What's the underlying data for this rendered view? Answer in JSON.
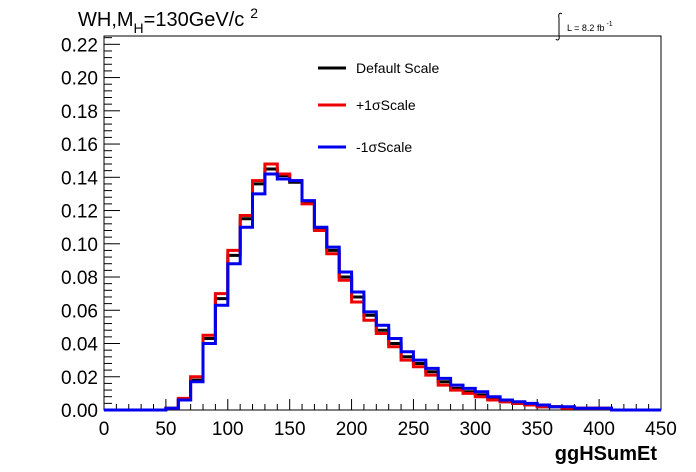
{
  "chart_data": {
    "type": "line",
    "title": "WH,M",
    "title_subscript": "H",
    "title_rest": "=130GeV/c",
    "title_superscript": "2",
    "luminosity_label": "L = 8.2 fb",
    "luminosity_superscript": "-1",
    "xlabel": "ggHSumEt",
    "ylabel": "",
    "xlim": [
      0,
      450
    ],
    "ylim": [
      0,
      0.225
    ],
    "x_ticks": [
      "0",
      "50",
      "100",
      "150",
      "200",
      "250",
      "300",
      "350",
      "400",
      "450"
    ],
    "y_ticks": [
      "0.00",
      "0.02",
      "0.04",
      "0.06",
      "0.08",
      "0.10",
      "0.12",
      "0.14",
      "0.16",
      "0.18",
      "0.20",
      "0.22"
    ],
    "bin_edges": [
      0,
      10,
      20,
      30,
      40,
      50,
      60,
      70,
      80,
      90,
      100,
      110,
      120,
      130,
      140,
      150,
      160,
      170,
      180,
      190,
      200,
      210,
      220,
      230,
      240,
      250,
      260,
      270,
      280,
      290,
      300,
      310,
      320,
      330,
      340,
      350,
      360,
      370,
      380,
      390,
      400,
      410,
      420,
      430,
      440,
      450
    ],
    "grid": false,
    "legend_position": "top-center",
    "series": [
      {
        "name": "Default Scale",
        "color": "#000000",
        "values": [
          0,
          0,
          0,
          0,
          0,
          0.001,
          0.006,
          0.018,
          0.043,
          0.067,
          0.093,
          0.115,
          0.136,
          0.145,
          0.141,
          0.137,
          0.125,
          0.109,
          0.096,
          0.08,
          0.068,
          0.057,
          0.048,
          0.04,
          0.032,
          0.028,
          0.023,
          0.017,
          0.013,
          0.011,
          0.009,
          0.007,
          0.005,
          0.004,
          0.003,
          0.002,
          0.002,
          0.001,
          0.001,
          0.001,
          0.001,
          0,
          0,
          0,
          0
        ]
      },
      {
        "name": "+1σScale",
        "color": "#ee0000",
        "values": [
          0,
          0,
          0,
          0,
          0,
          0.001,
          0.007,
          0.02,
          0.045,
          0.07,
          0.096,
          0.117,
          0.138,
          0.148,
          0.142,
          0.138,
          0.124,
          0.108,
          0.094,
          0.078,
          0.065,
          0.054,
          0.046,
          0.038,
          0.03,
          0.026,
          0.021,
          0.015,
          0.012,
          0.01,
          0.008,
          0.006,
          0.005,
          0.004,
          0.003,
          0.002,
          0.002,
          0.001,
          0.001,
          0.001,
          0.001,
          0,
          0,
          0,
          0
        ]
      },
      {
        "name": "-1σScale",
        "color": "#0000ee",
        "values": [
          0,
          0,
          0,
          0,
          0,
          0.001,
          0.006,
          0.017,
          0.04,
          0.063,
          0.088,
          0.11,
          0.13,
          0.142,
          0.139,
          0.138,
          0.126,
          0.11,
          0.098,
          0.083,
          0.071,
          0.059,
          0.051,
          0.043,
          0.035,
          0.03,
          0.025,
          0.019,
          0.015,
          0.013,
          0.011,
          0.008,
          0.006,
          0.005,
          0.004,
          0.003,
          0.002,
          0.002,
          0.001,
          0.001,
          0.001,
          0,
          0,
          0,
          0
        ]
      }
    ]
  }
}
